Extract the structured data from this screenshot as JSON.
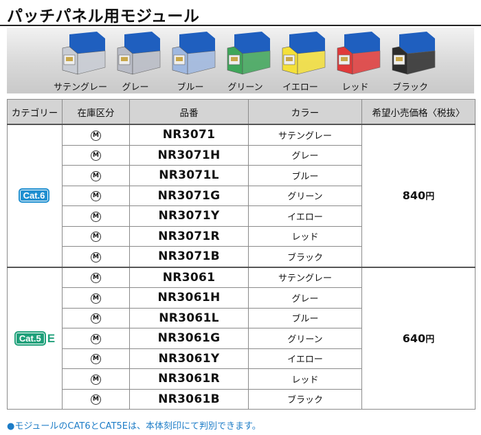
{
  "page": {
    "title": "パッチパネル用モジュール",
    "footnote": "●モジュールのCAT6とCAT5Eは、本体刻印にて判別できます。"
  },
  "modules": [
    {
      "label": "サテングレー",
      "color": "#c8ccd4"
    },
    {
      "label": "グレー",
      "color": "#b9bcc6"
    },
    {
      "label": "ブルー",
      "color": "#9fb8e0"
    },
    {
      "label": "グリーン",
      "color": "#3fa65a"
    },
    {
      "label": "イエロー",
      "color": "#f4e03a"
    },
    {
      "label": "レッド",
      "color": "#e03a3a"
    },
    {
      "label": "ブラック",
      "color": "#2c2c2c"
    }
  ],
  "module_top_color": "#1f5fbf",
  "table": {
    "headers": [
      "カテゴリー",
      "在庫区分",
      "品番",
      "カラー",
      "希望小売価格〈税抜〉"
    ],
    "stock_mark": "M",
    "groups": [
      {
        "category": "Cat.6",
        "category_suffix": "",
        "price": "840",
        "price_unit": "円",
        "rows": [
          {
            "part": "NR3071",
            "color": "サテングレー"
          },
          {
            "part": "NR3071H",
            "color": "グレー"
          },
          {
            "part": "NR3071L",
            "color": "ブルー"
          },
          {
            "part": "NR3071G",
            "color": "グリーン"
          },
          {
            "part": "NR3071Y",
            "color": "イエロー"
          },
          {
            "part": "NR3071R",
            "color": "レッド"
          },
          {
            "part": "NR3071B",
            "color": "ブラック"
          }
        ]
      },
      {
        "category": "Cat.5",
        "category_suffix": "E",
        "price": "640",
        "price_unit": "円",
        "rows": [
          {
            "part": "NR3061",
            "color": "サテングレー"
          },
          {
            "part": "NR3061H",
            "color": "グレー"
          },
          {
            "part": "NR3061L",
            "color": "ブルー"
          },
          {
            "part": "NR3061G",
            "color": "グリーン"
          },
          {
            "part": "NR3061Y",
            "color": "イエロー"
          },
          {
            "part": "NR3061R",
            "color": "レッド"
          },
          {
            "part": "NR3061B",
            "color": "ブラック"
          }
        ]
      }
    ]
  }
}
